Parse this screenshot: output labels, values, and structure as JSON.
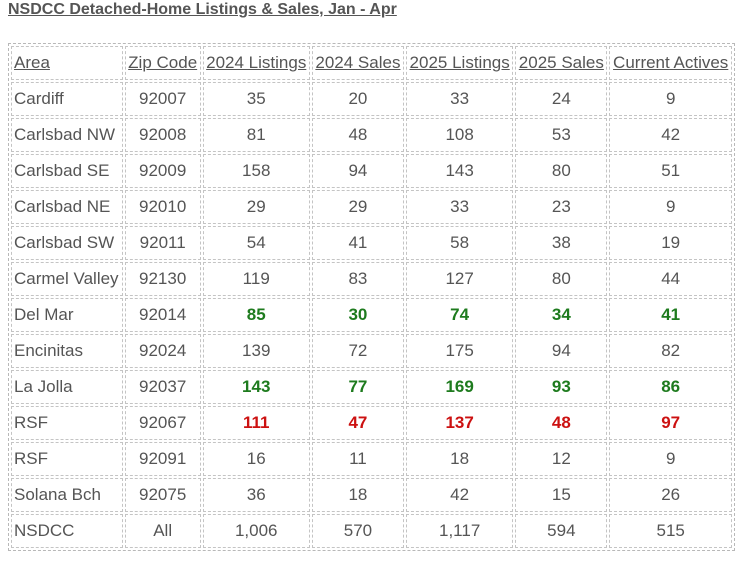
{
  "title": "NSDCC Detached-Home Listings & Sales, Jan - Apr",
  "colors": {
    "text": "#555555",
    "highlight_green": "#1e7b1e",
    "highlight_red": "#cc1111"
  },
  "table": {
    "headers": [
      "Area",
      "Zip Code",
      "2024 Listings",
      "2024 Sales",
      "2025 Listings",
      "2025 Sales",
      "Current Actives"
    ],
    "rows": [
      {
        "area": "Cardiff",
        "zip": "92007",
        "listings_2024": "35",
        "sales_2024": "20",
        "listings_2025": "33",
        "sales_2025": "24",
        "actives": "9",
        "highlight": "none"
      },
      {
        "area": "Carlsbad NW",
        "zip": "92008",
        "listings_2024": "81",
        "sales_2024": "48",
        "listings_2025": "108",
        "sales_2025": "53",
        "actives": "42",
        "highlight": "none"
      },
      {
        "area": "Carlsbad SE",
        "zip": "92009",
        "listings_2024": "158",
        "sales_2024": "94",
        "listings_2025": "143",
        "sales_2025": "80",
        "actives": "51",
        "highlight": "none"
      },
      {
        "area": "Carlsbad NE",
        "zip": "92010",
        "listings_2024": "29",
        "sales_2024": "29",
        "listings_2025": "33",
        "sales_2025": "23",
        "actives": "9",
        "highlight": "none"
      },
      {
        "area": "Carlsbad SW",
        "zip": "92011",
        "listings_2024": "54",
        "sales_2024": "41",
        "listings_2025": "58",
        "sales_2025": "38",
        "actives": "19",
        "highlight": "none"
      },
      {
        "area": "Carmel Valley",
        "zip": "92130",
        "listings_2024": "119",
        "sales_2024": "83",
        "listings_2025": "127",
        "sales_2025": "80",
        "actives": "44",
        "highlight": "none"
      },
      {
        "area": "Del Mar",
        "zip": "92014",
        "listings_2024": "85",
        "sales_2024": "30",
        "listings_2025": "74",
        "sales_2025": "34",
        "actives": "41",
        "highlight": "green"
      },
      {
        "area": "Encinitas",
        "zip": "92024",
        "listings_2024": "139",
        "sales_2024": "72",
        "listings_2025": "175",
        "sales_2025": "94",
        "actives": "82",
        "highlight": "none"
      },
      {
        "area": "La Jolla",
        "zip": "92037",
        "listings_2024": "143",
        "sales_2024": "77",
        "listings_2025": "169",
        "sales_2025": "93",
        "actives": "86",
        "highlight": "green"
      },
      {
        "area": "RSF",
        "zip": "92067",
        "listings_2024": "111",
        "sales_2024": "47",
        "listings_2025": "137",
        "sales_2025": "48",
        "actives": "97",
        "highlight": "red"
      },
      {
        "area": "RSF",
        "zip": "92091",
        "listings_2024": "16",
        "sales_2024": "11",
        "listings_2025": "18",
        "sales_2025": "12",
        "actives": "9",
        "highlight": "none"
      },
      {
        "area": "Solana Bch",
        "zip": "92075",
        "listings_2024": "36",
        "sales_2024": "18",
        "listings_2025": "42",
        "sales_2025": "15",
        "actives": "26",
        "highlight": "none"
      },
      {
        "area": "NSDCC",
        "zip": "All",
        "listings_2024": "1,006",
        "sales_2024": "570",
        "listings_2025": "1,117",
        "sales_2025": "594",
        "actives": "515",
        "highlight": "none"
      }
    ]
  }
}
